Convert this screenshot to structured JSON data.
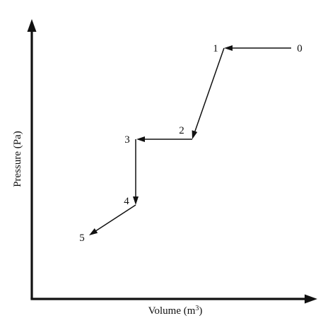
{
  "axes": {
    "x_label": "Volume (m",
    "x_label_sup": "3",
    "x_label_close": ")",
    "y_label": "Pressure (Pa)"
  },
  "points": [
    {
      "id": "p0",
      "label": "0"
    },
    {
      "id": "p1",
      "label": "1"
    },
    {
      "id": "p2",
      "label": "2"
    },
    {
      "id": "p3",
      "label": "3"
    },
    {
      "id": "p4",
      "label": "4"
    },
    {
      "id": "p5",
      "label": "5"
    }
  ],
  "segments": [
    {
      "from": "0",
      "to": "1"
    },
    {
      "from": "1",
      "to": "2"
    },
    {
      "from": "2",
      "to": "3"
    },
    {
      "from": "3",
      "to": "4"
    },
    {
      "from": "4",
      "to": "5"
    }
  ],
  "colors": {
    "ink": "#111111",
    "background": "#ffffff"
  }
}
